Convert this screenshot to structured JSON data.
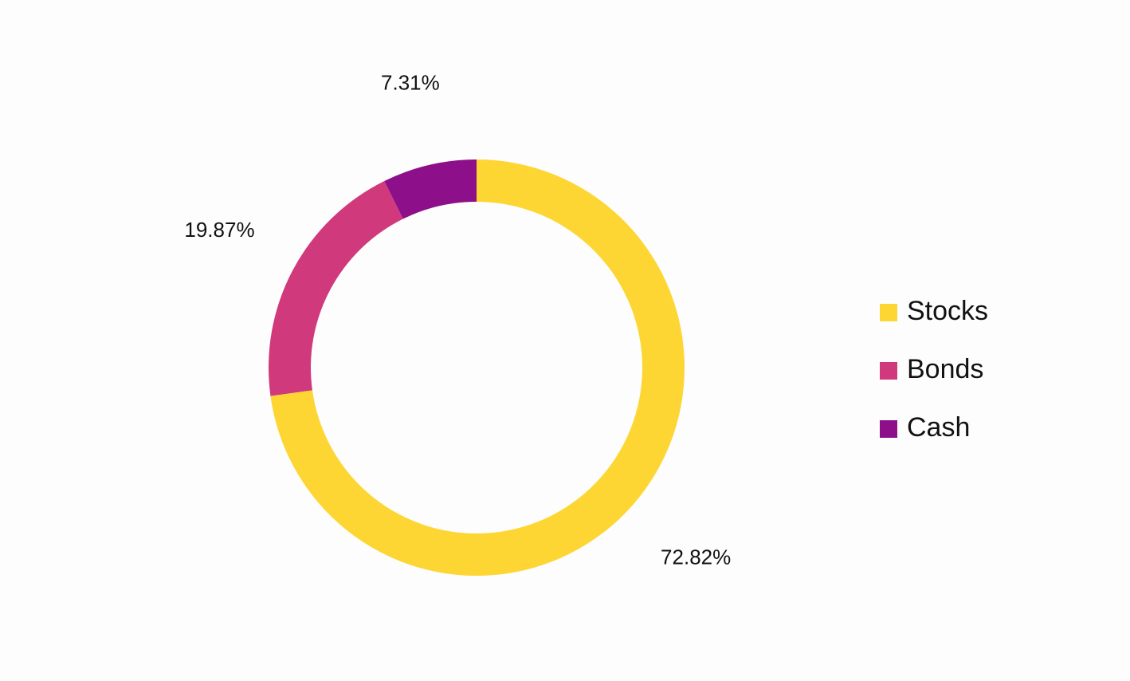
{
  "chart_data": {
    "type": "pie",
    "categories": [
      "Stocks",
      "Bonds",
      "Cash"
    ],
    "values": [
      72.82,
      19.87,
      7.31
    ],
    "value_labels": [
      "72.82%",
      "19.87%",
      "7.31%"
    ],
    "colors": [
      "#fdd633",
      "#d03a7c",
      "#8e0f8a"
    ],
    "legend": "right"
  }
}
